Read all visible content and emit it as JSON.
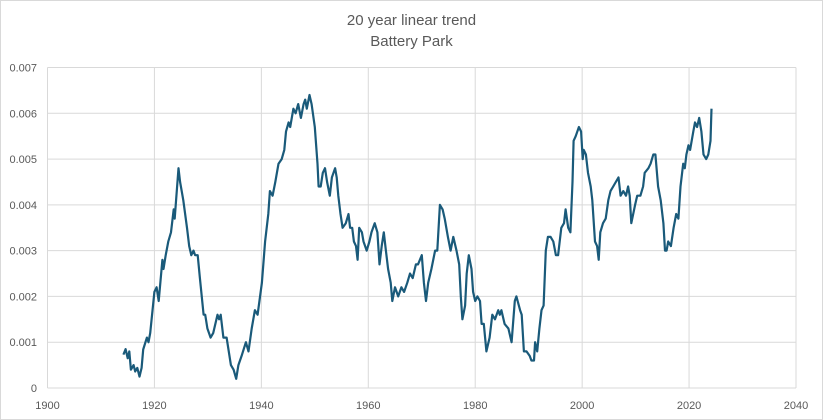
{
  "chart_data": {
    "type": "line",
    "title": "20 year linear trend",
    "subtitle": "Battery Park",
    "xlabel": "",
    "ylabel": "",
    "xlim": [
      1900,
      2040
    ],
    "ylim": [
      0,
      0.007
    ],
    "x_ticks": [
      "1900",
      "1920",
      "1940",
      "1960",
      "1980",
      "2000",
      "2020",
      "2040"
    ],
    "y_ticks": [
      "0",
      "0.001",
      "0.002",
      "0.003",
      "0.004",
      "0.005",
      "0.006",
      "0.007"
    ],
    "grid": true,
    "legend": "none",
    "color": "#1a5a7a",
    "series": [
      {
        "name": "20 year linear trend",
        "points": [
          [
            1914.2,
            0.00073
          ],
          [
            1914.6,
            0.00085
          ],
          [
            1915.0,
            0.00065
          ],
          [
            1915.3,
            0.0008
          ],
          [
            1915.6,
            0.0004
          ],
          [
            1916.1,
            0.0005
          ],
          [
            1916.4,
            0.00036
          ],
          [
            1916.8,
            0.00044
          ],
          [
            1917.2,
            0.00025
          ],
          [
            1917.6,
            0.00044
          ],
          [
            1917.9,
            0.00084
          ],
          [
            1918.6,
            0.0011
          ],
          [
            1918.9,
            0.001
          ],
          [
            1919.2,
            0.0012
          ],
          [
            1920.0,
            0.0021
          ],
          [
            1920.4,
            0.0022
          ],
          [
            1920.8,
            0.0019
          ],
          [
            1921.5,
            0.0028
          ],
          [
            1921.7,
            0.0026
          ],
          [
            1922.1,
            0.0029
          ],
          [
            1922.6,
            0.0032
          ],
          [
            1923.1,
            0.0034
          ],
          [
            1923.6,
            0.0039
          ],
          [
            1923.8,
            0.0037
          ],
          [
            1924.5,
            0.0048
          ],
          [
            1924.8,
            0.0045
          ],
          [
            1925.1,
            0.0043
          ],
          [
            1925.4,
            0.0041
          ],
          [
            1926.1,
            0.0035
          ],
          [
            1926.5,
            0.0031
          ],
          [
            1926.9,
            0.0029
          ],
          [
            1927.3,
            0.003
          ],
          [
            1927.6,
            0.0029
          ],
          [
            1928.1,
            0.0029
          ],
          [
            1928.5,
            0.0024
          ],
          [
            1929.2,
            0.0016
          ],
          [
            1929.5,
            0.0016
          ],
          [
            1929.9,
            0.0013
          ],
          [
            1930.5,
            0.0011
          ],
          [
            1931.0,
            0.0012
          ],
          [
            1931.8,
            0.0016
          ],
          [
            1932.1,
            0.0015
          ],
          [
            1932.4,
            0.0016
          ],
          [
            1932.9,
            0.0011
          ],
          [
            1933.5,
            0.0011
          ],
          [
            1934.3,
            0.0005
          ],
          [
            1934.8,
            0.0004
          ],
          [
            1935.3,
            0.0002
          ],
          [
            1935.7,
            0.0005
          ],
          [
            1936.3,
            0.0007
          ],
          [
            1937.1,
            0.001
          ],
          [
            1937.6,
            0.0008
          ],
          [
            1938.2,
            0.0013
          ],
          [
            1938.8,
            0.0017
          ],
          [
            1939.3,
            0.0016
          ],
          [
            1940.1,
            0.0023
          ],
          [
            1940.7,
            0.0032
          ],
          [
            1941.3,
            0.0038
          ],
          [
            1941.6,
            0.0043
          ],
          [
            1942.1,
            0.0042
          ],
          [
            1942.6,
            0.0045
          ],
          [
            1943.2,
            0.0049
          ],
          [
            1943.8,
            0.005
          ],
          [
            1944.3,
            0.0052
          ],
          [
            1944.6,
            0.0056
          ],
          [
            1945.1,
            0.0058
          ],
          [
            1945.4,
            0.0057
          ],
          [
            1946.0,
            0.0061
          ],
          [
            1946.4,
            0.006
          ],
          [
            1946.9,
            0.0062
          ],
          [
            1947.4,
            0.0059
          ],
          [
            1947.9,
            0.0062
          ],
          [
            1948.2,
            0.0063
          ],
          [
            1948.5,
            0.0061
          ],
          [
            1949.0,
            0.0064
          ],
          [
            1949.4,
            0.0062
          ],
          [
            1950.0,
            0.0057
          ],
          [
            1950.5,
            0.0049
          ],
          [
            1950.7,
            0.0044
          ],
          [
            1951.1,
            0.0044
          ],
          [
            1951.5,
            0.0047
          ],
          [
            1951.9,
            0.0048
          ],
          [
            1952.3,
            0.0045
          ],
          [
            1952.8,
            0.0042
          ],
          [
            1953.2,
            0.0046
          ],
          [
            1953.8,
            0.0048
          ],
          [
            1954.1,
            0.0046
          ],
          [
            1954.4,
            0.0042
          ],
          [
            1954.8,
            0.0038
          ],
          [
            1955.2,
            0.0035
          ],
          [
            1955.8,
            0.0036
          ],
          [
            1956.3,
            0.0038
          ],
          [
            1956.6,
            0.0035
          ],
          [
            1957.0,
            0.0035
          ],
          [
            1957.3,
            0.0032
          ],
          [
            1957.7,
            0.0031
          ],
          [
            1958.0,
            0.0028
          ],
          [
            1958.3,
            0.0035
          ],
          [
            1958.8,
            0.0034
          ],
          [
            1959.1,
            0.0032
          ],
          [
            1959.7,
            0.003
          ],
          [
            1960.2,
            0.0032
          ],
          [
            1960.6,
            0.0034
          ],
          [
            1961.2,
            0.0036
          ],
          [
            1961.7,
            0.0034
          ],
          [
            1962.1,
            0.0027
          ],
          [
            1962.5,
            0.0031
          ],
          [
            1962.9,
            0.0034
          ],
          [
            1963.3,
            0.003
          ],
          [
            1963.7,
            0.0026
          ],
          [
            1964.2,
            0.0023
          ],
          [
            1964.5,
            0.0019
          ],
          [
            1965.0,
            0.0022
          ],
          [
            1965.6,
            0.002
          ],
          [
            1966.2,
            0.0022
          ],
          [
            1966.7,
            0.0021
          ],
          [
            1967.3,
            0.0023
          ],
          [
            1967.8,
            0.0025
          ],
          [
            1968.3,
            0.0024
          ],
          [
            1968.9,
            0.0027
          ],
          [
            1969.3,
            0.0027
          ],
          [
            1970.0,
            0.0029
          ],
          [
            1970.4,
            0.0023
          ],
          [
            1970.8,
            0.0019
          ],
          [
            1971.2,
            0.0023
          ],
          [
            1971.8,
            0.0026
          ],
          [
            1972.5,
            0.003
          ],
          [
            1972.9,
            0.003
          ],
          [
            1973.4,
            0.004
          ],
          [
            1973.9,
            0.0039
          ],
          [
            1974.3,
            0.0037
          ],
          [
            1974.9,
            0.0033
          ],
          [
            1975.4,
            0.003
          ],
          [
            1975.9,
            0.0033
          ],
          [
            1976.5,
            0.003
          ],
          [
            1977.0,
            0.0027
          ],
          [
            1977.3,
            0.002
          ],
          [
            1977.6,
            0.0015
          ],
          [
            1978.1,
            0.0018
          ],
          [
            1978.4,
            0.0025
          ],
          [
            1978.8,
            0.0029
          ],
          [
            1979.3,
            0.0026
          ],
          [
            1979.6,
            0.0021
          ],
          [
            1980.0,
            0.0019
          ],
          [
            1980.4,
            0.002
          ],
          [
            1980.9,
            0.0019
          ],
          [
            1981.2,
            0.0014
          ],
          [
            1981.6,
            0.0014
          ],
          [
            1982.1,
            0.0008
          ],
          [
            1982.7,
            0.0011
          ],
          [
            1983.2,
            0.0016
          ],
          [
            1983.7,
            0.0015
          ],
          [
            1984.3,
            0.0017
          ],
          [
            1984.6,
            0.0016
          ],
          [
            1984.9,
            0.0017
          ],
          [
            1985.5,
            0.0014
          ],
          [
            1986.2,
            0.0013
          ],
          [
            1986.8,
            0.001
          ],
          [
            1987.4,
            0.0019
          ],
          [
            1987.7,
            0.002
          ],
          [
            1988.4,
            0.0017
          ],
          [
            1988.7,
            0.0016
          ],
          [
            1989.1,
            0.0008
          ],
          [
            1989.6,
            0.0008
          ],
          [
            1990.2,
            0.0007
          ],
          [
            1990.5,
            0.0006
          ],
          [
            1991.0,
            0.0006
          ],
          [
            1991.2,
            0.001
          ],
          [
            1991.6,
            0.0008
          ],
          [
            1992.0,
            0.0013
          ],
          [
            1992.4,
            0.0017
          ],
          [
            1992.8,
            0.0018
          ],
          [
            1993.2,
            0.003
          ],
          [
            1993.6,
            0.0033
          ],
          [
            1994.1,
            0.0033
          ],
          [
            1994.6,
            0.0032
          ],
          [
            1995.1,
            0.0029
          ],
          [
            1995.5,
            0.0029
          ],
          [
            1996.1,
            0.0035
          ],
          [
            1996.6,
            0.0036
          ],
          [
            1996.9,
            0.0039
          ],
          [
            1997.4,
            0.0035
          ],
          [
            1997.8,
            0.0034
          ],
          [
            1998.2,
            0.0045
          ],
          [
            1998.4,
            0.0054
          ],
          [
            1998.8,
            0.0055
          ],
          [
            1999.4,
            0.0057
          ],
          [
            1999.8,
            0.0056
          ],
          [
            2000.1,
            0.005
          ],
          [
            2000.3,
            0.0052
          ],
          [
            2000.7,
            0.0051
          ],
          [
            2001.1,
            0.0047
          ],
          [
            2001.6,
            0.0044
          ],
          [
            2001.9,
            0.0041
          ],
          [
            2002.4,
            0.0032
          ],
          [
            2002.8,
            0.0031
          ],
          [
            2003.1,
            0.0028
          ],
          [
            2003.4,
            0.0034
          ],
          [
            2003.9,
            0.0036
          ],
          [
            2004.4,
            0.0037
          ],
          [
            2004.9,
            0.0041
          ],
          [
            2005.3,
            0.0043
          ],
          [
            2005.8,
            0.0044
          ],
          [
            2006.3,
            0.0045
          ],
          [
            2006.8,
            0.0046
          ],
          [
            2007.2,
            0.0042
          ],
          [
            2007.7,
            0.0043
          ],
          [
            2008.2,
            0.0042
          ],
          [
            2008.6,
            0.0044
          ],
          [
            2008.9,
            0.0042
          ],
          [
            2009.2,
            0.0036
          ],
          [
            2009.9,
            0.004
          ],
          [
            2010.3,
            0.0042
          ],
          [
            2010.9,
            0.0042
          ],
          [
            2011.4,
            0.0044
          ],
          [
            2011.7,
            0.0047
          ],
          [
            2012.4,
            0.0048
          ],
          [
            2012.8,
            0.0049
          ],
          [
            2013.3,
            0.0051
          ],
          [
            2013.7,
            0.0051
          ],
          [
            2014.2,
            0.0044
          ],
          [
            2014.7,
            0.0041
          ],
          [
            2015.2,
            0.0036
          ],
          [
            2015.5,
            0.003
          ],
          [
            2015.8,
            0.003
          ],
          [
            2016.1,
            0.0032
          ],
          [
            2016.6,
            0.0031
          ],
          [
            2017.1,
            0.0035
          ],
          [
            2017.6,
            0.0038
          ],
          [
            2018.0,
            0.0037
          ],
          [
            2018.4,
            0.0044
          ],
          [
            2018.9,
            0.0049
          ],
          [
            2019.2,
            0.0048
          ],
          [
            2019.5,
            0.0051
          ],
          [
            2019.9,
            0.0053
          ],
          [
            2020.2,
            0.0052
          ],
          [
            2020.8,
            0.0056
          ],
          [
            2021.1,
            0.0058
          ],
          [
            2021.5,
            0.0057
          ],
          [
            2021.9,
            0.0059
          ],
          [
            2022.3,
            0.0056
          ],
          [
            2022.7,
            0.0051
          ],
          [
            2023.2,
            0.005
          ],
          [
            2023.6,
            0.0051
          ],
          [
            2024.0,
            0.0054
          ],
          [
            2024.2,
            0.0061
          ]
        ]
      }
    ]
  }
}
